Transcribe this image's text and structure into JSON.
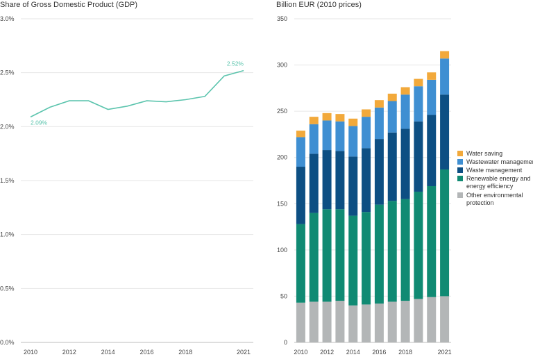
{
  "colors": {
    "line": "#5bc4ad",
    "water_saving": "#f2a93b",
    "wastewater_management": "#3f8fd2",
    "waste_management": "#0d4f83",
    "renewable_energy": "#108a73",
    "other_environmental": "#b3b6b7"
  },
  "chart_data": [
    {
      "type": "line",
      "title": "Share of Gross Domestic Product (GDP)",
      "x": [
        2010,
        2011,
        2012,
        2013,
        2014,
        2015,
        2016,
        2017,
        2018,
        2019,
        2020,
        2021
      ],
      "x_tick_labels": [
        "2010",
        "2012",
        "2014",
        "2016",
        "2018",
        "2021"
      ],
      "x_tick_values": [
        2010,
        2012,
        2014,
        2016,
        2018,
        2021
      ],
      "series": [
        {
          "values": [
            2.09,
            2.18,
            2.24,
            2.24,
            2.16,
            2.19,
            2.24,
            2.23,
            2.25,
            2.28,
            2.47,
            2.52
          ]
        }
      ],
      "y_tick_labels": [
        "0.0%",
        "0.5%",
        "1.0%",
        "1.5%",
        "2.0%",
        "2.5%",
        "3.0%"
      ],
      "y_tick_values": [
        0,
        0.5,
        1.0,
        1.5,
        2.0,
        2.5,
        3.0
      ],
      "ylim": [
        0,
        3.0
      ],
      "annotations": [
        {
          "x": 2010,
          "y": 2.09,
          "text": "2.09%"
        },
        {
          "x": 2021,
          "y": 2.52,
          "text": "2.52%"
        }
      ],
      "grid": true
    },
    {
      "type": "bar",
      "stacked": true,
      "title": "Billion EUR (2010 prices)",
      "categories": [
        2010,
        2011,
        2012,
        2013,
        2014,
        2015,
        2016,
        2017,
        2018,
        2019,
        2020,
        2021
      ],
      "x_tick_labels": [
        "2010",
        "2012",
        "2014",
        "2016",
        "2018",
        "2021"
      ],
      "x_tick_values": [
        2010,
        2012,
        2014,
        2016,
        2018,
        2021
      ],
      "series": [
        {
          "name": "Other environmental protection",
          "color_key": "other_environmental",
          "values": [
            43,
            44,
            44,
            45,
            40,
            41,
            42,
            44,
            45,
            47,
            49,
            50
          ]
        },
        {
          "name": "Renewable energy and energy efficiency",
          "color_key": "renewable_energy",
          "values": [
            85,
            96,
            100,
            99,
            97,
            100,
            107,
            109,
            110,
            116,
            120,
            137
          ]
        },
        {
          "name": "Waste management",
          "color_key": "waste_management",
          "values": [
            62,
            64,
            64,
            63,
            64,
            69,
            71,
            74,
            76,
            76,
            77,
            81
          ]
        },
        {
          "name": "Wastewater management",
          "color_key": "wastewater_management",
          "values": [
            32,
            32,
            32,
            32,
            33,
            34,
            34,
            34,
            37,
            38,
            38,
            39
          ]
        },
        {
          "name": "Water saving",
          "color_key": "water_saving",
          "values": [
            7,
            8,
            8,
            8,
            8,
            8,
            8,
            8,
            8,
            8,
            8,
            8
          ]
        }
      ],
      "legend_order": [
        "Water saving",
        "Wastewater management",
        "Waste management",
        "Renewable energy and energy efficiency",
        "Other environmental protection"
      ],
      "y_tick_labels": [
        "0",
        "50",
        "100",
        "150",
        "200",
        "250",
        "300",
        "350"
      ],
      "y_tick_values": [
        0,
        50,
        100,
        150,
        200,
        250,
        300,
        350
      ],
      "ylim": [
        0,
        350
      ],
      "legend_position": "right",
      "grid": true
    }
  ]
}
